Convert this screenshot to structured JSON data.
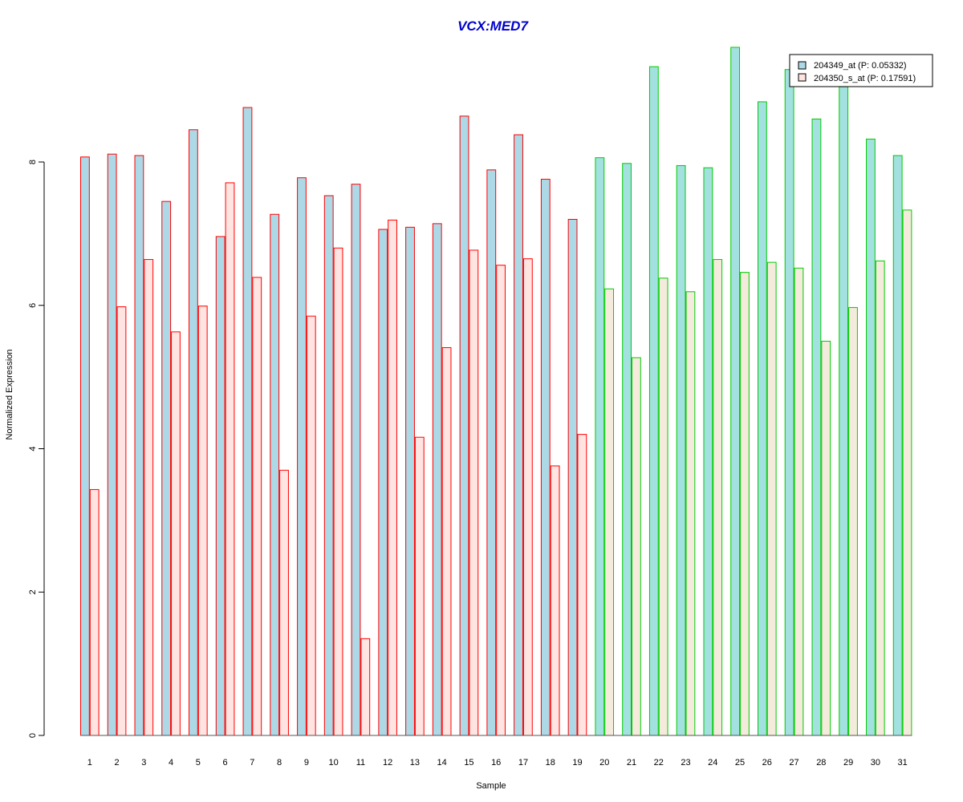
{
  "chart_data": {
    "type": "bar",
    "title": "VCX:MED7",
    "title_color": "#0000CC",
    "xlabel": "Sample",
    "ylabel": "Normalized Expression",
    "ylim": [
      0,
      10
    ],
    "y_ticks": [
      0,
      2,
      4,
      6,
      8
    ],
    "grid": false,
    "legend_placement": "top-right",
    "categories": [
      "1",
      "2",
      "3",
      "4",
      "5",
      "6",
      "7",
      "8",
      "9",
      "10",
      "11",
      "12",
      "13",
      "14",
      "15",
      "16",
      "17",
      "18",
      "19",
      "20",
      "21",
      "22",
      "23",
      "24",
      "25",
      "26",
      "27",
      "28",
      "29",
      "30",
      "31"
    ],
    "group_outline_colors": [
      "#FF0000",
      "#00CC00"
    ],
    "group_of_sample": [
      0,
      0,
      0,
      0,
      0,
      0,
      0,
      0,
      0,
      0,
      0,
      0,
      0,
      0,
      0,
      0,
      0,
      0,
      0,
      1,
      1,
      1,
      1,
      1,
      1,
      1,
      1,
      1,
      1,
      1,
      1
    ],
    "series": [
      {
        "name": "204349_at (P: 0.05332)",
        "fill_by_group": [
          "#ADD8E6",
          "#A3E0E0"
        ],
        "legend_fill": "#ADD8E6",
        "values": [
          8.07,
          8.11,
          8.09,
          7.45,
          8.45,
          6.96,
          8.76,
          7.27,
          7.78,
          7.53,
          7.69,
          7.06,
          7.09,
          7.14,
          8.64,
          7.89,
          8.38,
          7.76,
          7.2,
          8.06,
          7.98,
          9.33,
          7.95,
          7.92,
          9.6,
          8.84,
          9.29,
          8.6,
          9.05,
          8.32,
          8.09
        ]
      },
      {
        "name": "204350_s_at (P: 0.17591)",
        "fill_by_group": [
          "#FFE4E1",
          "#F5EBDC"
        ],
        "legend_fill": "#FFE4E1",
        "values": [
          3.43,
          5.98,
          6.64,
          5.63,
          5.99,
          7.71,
          6.39,
          3.7,
          5.85,
          6.8,
          1.35,
          7.19,
          4.16,
          5.41,
          6.77,
          6.56,
          6.65,
          3.76,
          4.2,
          6.23,
          5.27,
          6.38,
          6.19,
          6.64,
          6.46,
          6.6,
          6.52,
          5.5,
          5.97,
          6.62,
          7.33
        ]
      }
    ]
  }
}
